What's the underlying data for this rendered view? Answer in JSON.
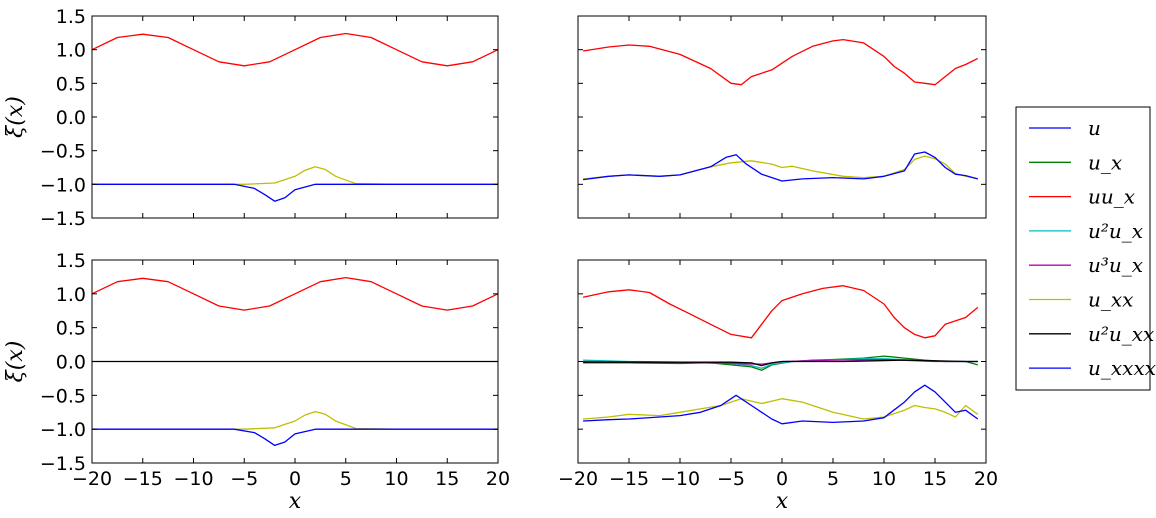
{
  "chart_data": {
    "type": "line",
    "xlim": [
      -20,
      20
    ],
    "ylim": [
      -1.5,
      1.5
    ],
    "xticks": [
      "−20",
      "−15",
      "−10",
      "−5",
      "0",
      "5",
      "10",
      "15",
      "20"
    ],
    "yticks": [
      "−1.5",
      "−1.0",
      "−0.5",
      "0.0",
      "0.5",
      "1.0",
      "1.5"
    ],
    "xlabel": "x",
    "ylabel": "ξ(x)",
    "legend": {
      "placement": "right",
      "entries": [
        {
          "key": "u",
          "label": "u",
          "color": "#0000ff"
        },
        {
          "key": "ux",
          "label": "u_x",
          "color": "#008000"
        },
        {
          "key": "uux",
          "label": "uu_x",
          "color": "#ff0000"
        },
        {
          "key": "u2ux",
          "label": "u²u_x",
          "color": "#00bfbf"
        },
        {
          "key": "u3ux",
          "label": "u³u_x",
          "color": "#bf00bf"
        },
        {
          "key": "uxx",
          "label": "u_xx",
          "color": "#bfbf00"
        },
        {
          "key": "u2uxx",
          "label": "u²u_xx",
          "color": "#000000"
        },
        {
          "key": "uxxxx",
          "label": "u_xxxx",
          "color": "#0000ff"
        }
      ]
    },
    "panels": [
      {
        "id": "top-left",
        "show_ylabel": true,
        "show_yticks": true,
        "show_xticks": false,
        "show_xlabel": false,
        "series": [
          {
            "key": "uux",
            "name": "uu_x",
            "x": [
              -20,
              -17.5,
              -15,
              -12.5,
              -10,
              -7.5,
              -5,
              -2.5,
              0,
              2.5,
              5,
              7.5,
              10,
              12.5,
              15,
              17.5,
              20
            ],
            "y": [
              1.0,
              1.18,
              1.23,
              1.18,
              1.0,
              0.82,
              0.76,
              0.82,
              1.0,
              1.18,
              1.24,
              1.18,
              1.0,
              0.82,
              0.76,
              0.82,
              1.0
            ]
          },
          {
            "key": "uxx",
            "name": "u_xx",
            "x": [
              -20,
              -10,
              -5,
              -2,
              0,
              1,
              2,
              3,
              4,
              6,
              10,
              20
            ],
            "y": [
              -1.0,
              -1.0,
              -1.0,
              -0.98,
              -0.88,
              -0.79,
              -0.74,
              -0.78,
              -0.88,
              -0.99,
              -1.0,
              -1.0
            ]
          },
          {
            "key": "u",
            "name": "u",
            "x": [
              -20,
              -10,
              -6,
              -4,
              -3,
              -2,
              -1,
              0,
              2,
              5,
              10,
              20
            ],
            "y": [
              -1.0,
              -1.0,
              -1.0,
              -1.06,
              -1.15,
              -1.25,
              -1.2,
              -1.08,
              -1.0,
              -1.0,
              -1.0,
              -1.0
            ]
          }
        ]
      },
      {
        "id": "top-right",
        "show_ylabel": false,
        "show_yticks": false,
        "show_xticks": false,
        "show_xlabel": false,
        "series": [
          {
            "key": "uux",
            "name": "uu_x",
            "x": [
              -19.5,
              -17,
              -15,
              -13,
              -10,
              -7,
              -5,
              -4,
              -3,
              -1,
              1,
              3,
              5,
              6,
              8,
              10,
              11,
              12,
              13,
              14,
              15,
              16,
              17,
              18,
              19.2
            ],
            "y": [
              0.98,
              1.04,
              1.07,
              1.05,
              0.93,
              0.72,
              0.5,
              0.48,
              0.6,
              0.7,
              0.9,
              1.05,
              1.13,
              1.15,
              1.1,
              0.9,
              0.75,
              0.65,
              0.52,
              0.5,
              0.48,
              0.6,
              0.72,
              0.78,
              0.87
            ]
          },
          {
            "key": "uxx",
            "name": "u_xx",
            "x": [
              -19.5,
              -17,
              -15,
              -12,
              -10,
              -7,
              -5,
              -3,
              -1,
              0,
              1,
              3,
              6,
              8,
              10,
              12,
              13,
              14,
              15,
              16,
              17,
              18,
              19.2
            ],
            "y": [
              -0.92,
              -0.88,
              -0.86,
              -0.88,
              -0.86,
              -0.74,
              -0.68,
              -0.65,
              -0.7,
              -0.75,
              -0.73,
              -0.8,
              -0.88,
              -0.9,
              -0.88,
              -0.78,
              -0.63,
              -0.58,
              -0.62,
              -0.7,
              -0.84,
              -0.88,
              -0.92
            ]
          },
          {
            "key": "u",
            "name": "u",
            "x": [
              -19.5,
              -17,
              -15,
              -12,
              -10,
              -7,
              -5.5,
              -4.5,
              -3.5,
              -2,
              0,
              2,
              5,
              8,
              10,
              12,
              13,
              14,
              15,
              16,
              17,
              18,
              19.2
            ],
            "y": [
              -0.93,
              -0.88,
              -0.86,
              -0.88,
              -0.86,
              -0.74,
              -0.6,
              -0.56,
              -0.7,
              -0.85,
              -0.95,
              -0.92,
              -0.9,
              -0.92,
              -0.88,
              -0.8,
              -0.55,
              -0.52,
              -0.6,
              -0.75,
              -0.85,
              -0.87,
              -0.92
            ]
          }
        ]
      },
      {
        "id": "bottom-left",
        "show_ylabel": true,
        "show_yticks": true,
        "show_xticks": true,
        "show_xlabel": true,
        "series": [
          {
            "key": "uux",
            "name": "uu_x",
            "x": [
              -20,
              -17.5,
              -15,
              -12.5,
              -10,
              -7.5,
              -5,
              -2.5,
              0,
              2.5,
              5,
              7.5,
              10,
              12.5,
              15,
              17.5,
              20
            ],
            "y": [
              1.0,
              1.18,
              1.23,
              1.18,
              1.0,
              0.82,
              0.76,
              0.82,
              1.0,
              1.18,
              1.24,
              1.18,
              1.0,
              0.82,
              0.76,
              0.82,
              1.0
            ]
          },
          {
            "key": "u2uxx",
            "name": "u²u_xx",
            "x": [
              -20,
              20
            ],
            "y": [
              0.0,
              0.0
            ]
          },
          {
            "key": "uxx",
            "name": "u_xx",
            "x": [
              -20,
              -10,
              -5,
              -2,
              0,
              1,
              2,
              3,
              4,
              6,
              10,
              20
            ],
            "y": [
              -1.0,
              -1.0,
              -1.0,
              -0.98,
              -0.88,
              -0.79,
              -0.74,
              -0.78,
              -0.88,
              -0.99,
              -1.0,
              -1.0
            ]
          },
          {
            "key": "u",
            "name": "u",
            "x": [
              -20,
              -10,
              -6,
              -4,
              -3,
              -2,
              -1,
              0,
              2,
              5,
              10,
              20
            ],
            "y": [
              -1.0,
              -1.0,
              -1.0,
              -1.05,
              -1.14,
              -1.24,
              -1.19,
              -1.07,
              -1.0,
              -1.0,
              -1.0,
              -1.0
            ]
          }
        ]
      },
      {
        "id": "bottom-right",
        "show_ylabel": false,
        "show_yticks": false,
        "show_xticks": true,
        "show_xlabel": true,
        "series": [
          {
            "key": "uux",
            "name": "uu_x",
            "x": [
              -19.5,
              -17,
              -15,
              -13,
              -11,
              -9,
              -7,
              -5,
              -3,
              -2,
              -1,
              0,
              2,
              4,
              6,
              8,
              10,
              11,
              12,
              13,
              14,
              15,
              16,
              17,
              18,
              19.2
            ],
            "y": [
              0.95,
              1.03,
              1.06,
              1.02,
              0.85,
              0.7,
              0.55,
              0.4,
              0.35,
              0.55,
              0.75,
              0.9,
              1.0,
              1.08,
              1.12,
              1.05,
              0.85,
              0.65,
              0.5,
              0.4,
              0.35,
              0.38,
              0.55,
              0.6,
              0.65,
              0.8
            ]
          },
          {
            "key": "ux",
            "name": "u_x",
            "x": [
              -19.5,
              -15,
              -10,
              -7,
              -5,
              -3,
              -2,
              -1,
              1,
              3,
              5,
              8,
              10,
              12,
              14,
              16,
              18,
              19.2
            ],
            "y": [
              -0.02,
              -0.02,
              -0.03,
              -0.02,
              -0.05,
              -0.08,
              -0.13,
              -0.05,
              0.0,
              0.02,
              0.03,
              0.05,
              0.08,
              0.05,
              0.02,
              0.0,
              0.0,
              -0.05
            ]
          },
          {
            "key": "u2ux",
            "name": "u²u_x",
            "x": [
              -19.5,
              -15,
              -10,
              -5,
              -3,
              -2,
              -1,
              1,
              4,
              8,
              10,
              13,
              16,
              19.2
            ],
            "y": [
              0.02,
              0.0,
              -0.01,
              -0.03,
              -0.06,
              -0.1,
              -0.04,
              0.0,
              0.02,
              0.04,
              0.04,
              0.02,
              0.0,
              0.0
            ]
          },
          {
            "key": "u3ux",
            "name": "u³u_x",
            "x": [
              -19.5,
              -10,
              -2,
              0,
              5,
              10,
              15,
              19.2
            ],
            "y": [
              0.0,
              -0.01,
              -0.04,
              0.0,
              0.02,
              0.03,
              0.0,
              0.0
            ]
          },
          {
            "key": "u2uxx",
            "name": "u²u_xx",
            "x": [
              -19.5,
              -15,
              -10,
              -5,
              -3,
              -2,
              -1,
              0,
              3,
              6,
              9,
              12,
              15,
              18,
              19.2
            ],
            "y": [
              -0.01,
              -0.01,
              -0.01,
              -0.01,
              -0.02,
              -0.06,
              -0.02,
              0.0,
              0.0,
              0.0,
              0.01,
              0.02,
              0.01,
              0.0,
              0.0
            ]
          },
          {
            "key": "uxx",
            "name": "u_xx",
            "x": [
              -19.5,
              -17,
              -15,
              -12,
              -10,
              -8,
              -6,
              -4,
              -2,
              0,
              2,
              5,
              8,
              10,
              12,
              13,
              14,
              15,
              16,
              17,
              18,
              19.2
            ],
            "y": [
              -0.85,
              -0.82,
              -0.78,
              -0.8,
              -0.75,
              -0.7,
              -0.65,
              -0.55,
              -0.62,
              -0.55,
              -0.6,
              -0.75,
              -0.85,
              -0.82,
              -0.72,
              -0.65,
              -0.68,
              -0.7,
              -0.75,
              -0.82,
              -0.65,
              -0.78
            ]
          },
          {
            "key": "uxxxx",
            "name": "u_xxxx",
            "x": [
              -19.5,
              -17,
              -15,
              -12,
              -10,
              -8,
              -6,
              -4.5,
              -3,
              -1,
              0,
              2,
              5,
              8,
              10,
              12,
              13,
              14,
              15,
              16,
              17,
              18,
              19.2
            ],
            "y": [
              -0.88,
              -0.86,
              -0.85,
              -0.82,
              -0.8,
              -0.75,
              -0.65,
              -0.5,
              -0.65,
              -0.85,
              -0.92,
              -0.88,
              -0.9,
              -0.88,
              -0.83,
              -0.6,
              -0.45,
              -0.35,
              -0.45,
              -0.6,
              -0.75,
              -0.72,
              -0.85
            ]
          }
        ]
      }
    ]
  }
}
